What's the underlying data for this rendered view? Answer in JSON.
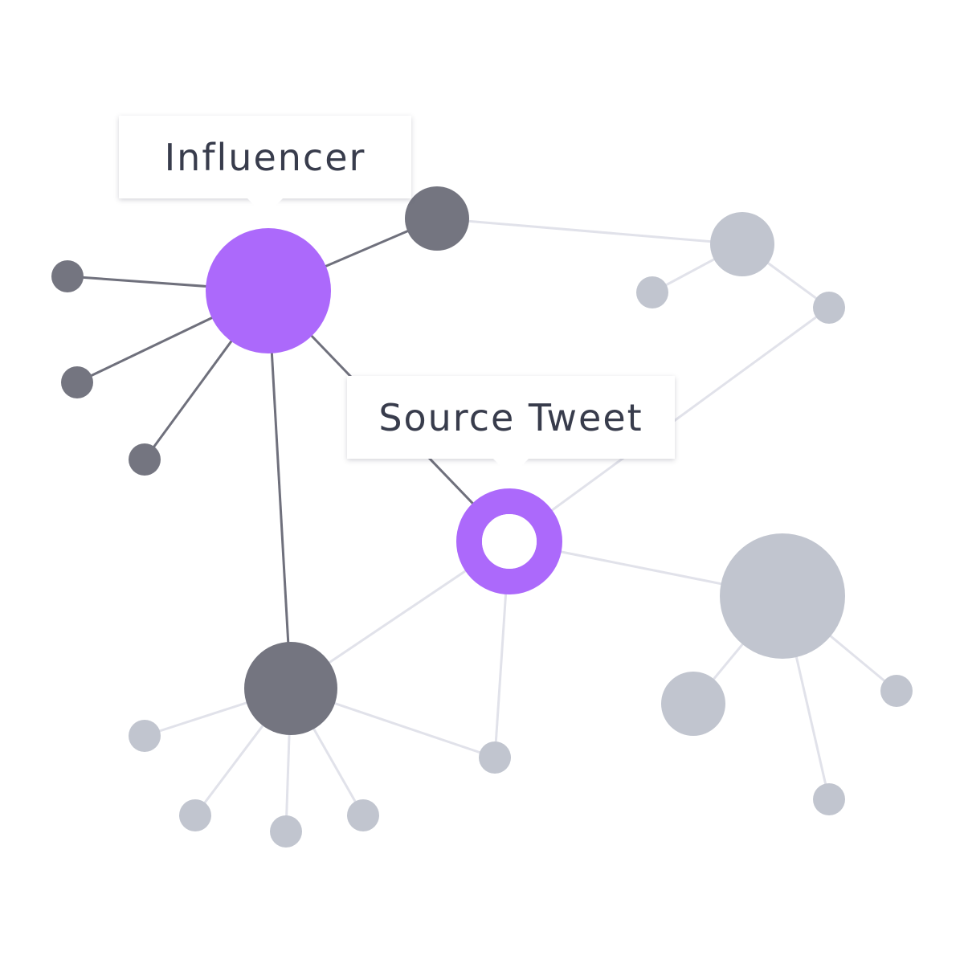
{
  "colors": {
    "highlight": "#ac69fb",
    "dark_node": "#747580",
    "light_node": "#c1c5cf",
    "dark_edge": "#6f707c",
    "light_edge": "#e1e2ea",
    "label_text": "#383c4c"
  },
  "labels": {
    "influencer": "Influencer",
    "source_tweet": "Source Tweet"
  }
}
